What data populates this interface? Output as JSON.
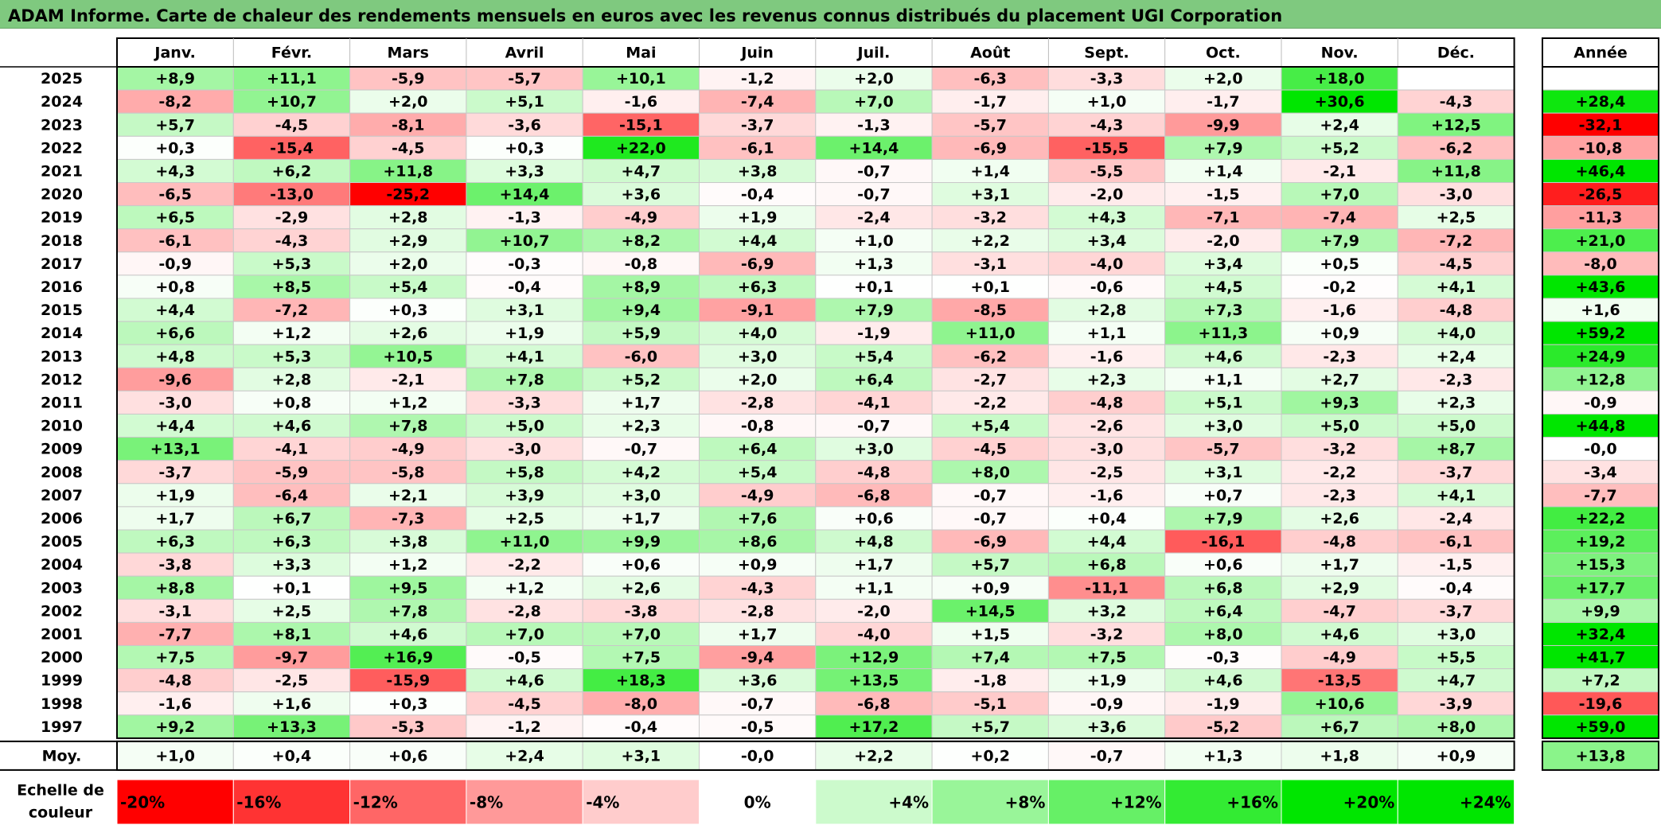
{
  "title": "ADAM Informe. Carte de chaleur des rendements mensuels en euros avec les revenus connus distribués du placement UGI Corporation",
  "chart_data": {
    "type": "heatmap",
    "title": "ADAM Informe. Carte de chaleur des rendements mensuels en euros avec les revenus connus distribués du placement UGI Corporation",
    "months": [
      "Janv.",
      "Févr.",
      "Mars",
      "Avril",
      "Mai",
      "Juin",
      "Juil.",
      "Août",
      "Sept.",
      "Oct.",
      "Nov.",
      "Déc."
    ],
    "year_header": "Année",
    "rows": [
      {
        "year": "2025",
        "values": [
          "+8,9",
          "+11,1",
          "-5,9",
          "-5,7",
          "+10,1",
          "-1,2",
          "+2,0",
          "-6,3",
          "-3,3",
          "+2,0",
          "+18,0",
          ""
        ],
        "annual": ""
      },
      {
        "year": "2024",
        "values": [
          "-8,2",
          "+10,7",
          "+2,0",
          "+5,1",
          "-1,6",
          "-7,4",
          "+7,0",
          "-1,7",
          "+1,0",
          "-1,7",
          "+30,6",
          "-4,3"
        ],
        "annual": "+28,4"
      },
      {
        "year": "2023",
        "values": [
          "+5,7",
          "-4,5",
          "-8,1",
          "-3,6",
          "-15,1",
          "-3,7",
          "-1,3",
          "-5,7",
          "-4,3",
          "-9,9",
          "+2,4",
          "+12,5"
        ],
        "annual": "-32,1"
      },
      {
        "year": "2022",
        "values": [
          "+0,3",
          "-15,4",
          "-4,5",
          "+0,3",
          "+22,0",
          "-6,1",
          "+14,4",
          "-6,9",
          "-15,5",
          "+7,9",
          "+5,2",
          "-6,2"
        ],
        "annual": "-10,8"
      },
      {
        "year": "2021",
        "values": [
          "+4,3",
          "+6,2",
          "+11,8",
          "+3,3",
          "+4,7",
          "+3,8",
          "-0,7",
          "+1,4",
          "-5,5",
          "+1,4",
          "-2,1",
          "+11,8"
        ],
        "annual": "+46,4"
      },
      {
        "year": "2020",
        "values": [
          "-6,5",
          "-13,0",
          "-25,2",
          "+14,4",
          "+3,6",
          "-0,4",
          "-0,7",
          "+3,1",
          "-2,0",
          "-1,5",
          "+7,0",
          "-3,0"
        ],
        "annual": "-26,5"
      },
      {
        "year": "2019",
        "values": [
          "+6,5",
          "-2,9",
          "+2,8",
          "-1,3",
          "-4,9",
          "+1,9",
          "-2,4",
          "-3,2",
          "+4,3",
          "-7,1",
          "-7,4",
          "+2,5"
        ],
        "annual": "-11,3"
      },
      {
        "year": "2018",
        "values": [
          "-6,1",
          "-4,3",
          "+2,9",
          "+10,7",
          "+8,2",
          "+4,4",
          "+1,0",
          "+2,2",
          "+3,4",
          "-2,0",
          "+7,9",
          "-7,2"
        ],
        "annual": "+21,0"
      },
      {
        "year": "2017",
        "values": [
          "-0,9",
          "+5,3",
          "+2,0",
          "-0,3",
          "-0,8",
          "-6,9",
          "+1,3",
          "-3,1",
          "-4,0",
          "+3,4",
          "+0,5",
          "-4,5"
        ],
        "annual": "-8,0"
      },
      {
        "year": "2016",
        "values": [
          "+0,8",
          "+8,5",
          "+5,4",
          "-0,4",
          "+8,9",
          "+6,3",
          "+0,1",
          "+0,1",
          "-0,6",
          "+4,5",
          "-0,2",
          "+4,1"
        ],
        "annual": "+43,6"
      },
      {
        "year": "2015",
        "values": [
          "+4,4",
          "-7,2",
          "+0,3",
          "+3,1",
          "+9,4",
          "-9,1",
          "+7,9",
          "-8,5",
          "+2,8",
          "+7,3",
          "-1,6",
          "-4,8"
        ],
        "annual": "+1,6"
      },
      {
        "year": "2014",
        "values": [
          "+6,6",
          "+1,2",
          "+2,6",
          "+1,9",
          "+5,9",
          "+4,0",
          "-1,9",
          "+11,0",
          "+1,1",
          "+11,3",
          "+0,9",
          "+4,0"
        ],
        "annual": "+59,2"
      },
      {
        "year": "2013",
        "values": [
          "+4,8",
          "+5,3",
          "+10,5",
          "+4,1",
          "-6,0",
          "+3,0",
          "+5,4",
          "-6,2",
          "-1,6",
          "+4,6",
          "-2,3",
          "+2,4"
        ],
        "annual": "+24,9"
      },
      {
        "year": "2012",
        "values": [
          "-9,6",
          "+2,8",
          "-2,1",
          "+7,8",
          "+5,2",
          "+2,0",
          "+6,4",
          "-2,7",
          "+2,3",
          "+1,1",
          "+2,7",
          "-2,3"
        ],
        "annual": "+12,8"
      },
      {
        "year": "2011",
        "values": [
          "-3,0",
          "+0,8",
          "+1,2",
          "-3,3",
          "+1,7",
          "-2,8",
          "-4,1",
          "-2,2",
          "-4,8",
          "+5,1",
          "+9,3",
          "+2,3"
        ],
        "annual": "-0,9"
      },
      {
        "year": "2010",
        "values": [
          "+4,4",
          "+4,6",
          "+7,8",
          "+5,0",
          "+2,3",
          "-0,8",
          "-0,7",
          "+5,4",
          "-2,6",
          "+3,0",
          "+5,0",
          "+5,0"
        ],
        "annual": "+44,8"
      },
      {
        "year": "2009",
        "values": [
          "+13,1",
          "-4,1",
          "-4,9",
          "-3,0",
          "-0,7",
          "+6,4",
          "+3,0",
          "-4,5",
          "-3,0",
          "-5,7",
          "-3,2",
          "+8,7"
        ],
        "annual": "-0,0"
      },
      {
        "year": "2008",
        "values": [
          "-3,7",
          "-5,9",
          "-5,8",
          "+5,8",
          "+4,2",
          "+5,4",
          "-4,8",
          "+8,0",
          "-2,5",
          "+3,1",
          "-2,2",
          "-3,7"
        ],
        "annual": "-3,4"
      },
      {
        "year": "2007",
        "values": [
          "+1,9",
          "-6,4",
          "+2,1",
          "+3,9",
          "+3,0",
          "-4,9",
          "-6,8",
          "-0,7",
          "-1,6",
          "+0,7",
          "-2,3",
          "+4,1"
        ],
        "annual": "-7,7"
      },
      {
        "year": "2006",
        "values": [
          "+1,7",
          "+6,7",
          "-7,3",
          "+2,5",
          "+1,7",
          "+7,6",
          "+0,6",
          "-0,7",
          "+0,4",
          "+7,9",
          "+2,6",
          "-2,4"
        ],
        "annual": "+22,2"
      },
      {
        "year": "2005",
        "values": [
          "+6,3",
          "+6,3",
          "+3,8",
          "+11,0",
          "+9,9",
          "+8,6",
          "+4,8",
          "-6,9",
          "+4,4",
          "-16,1",
          "-4,8",
          "-6,1"
        ],
        "annual": "+19,2"
      },
      {
        "year": "2004",
        "values": [
          "-3,8",
          "+3,3",
          "+1,2",
          "-2,2",
          "+0,6",
          "+0,9",
          "+1,7",
          "+5,7",
          "+6,8",
          "+0,6",
          "+1,7",
          "-1,5"
        ],
        "annual": "+15,3"
      },
      {
        "year": "2003",
        "values": [
          "+8,8",
          "+0,1",
          "+9,5",
          "+1,2",
          "+2,6",
          "-4,3",
          "+1,1",
          "+0,9",
          "-11,1",
          "+6,8",
          "+2,9",
          "-0,4"
        ],
        "annual": "+17,7"
      },
      {
        "year": "2002",
        "values": [
          "-3,1",
          "+2,5",
          "+7,8",
          "-2,8",
          "-3,8",
          "-2,8",
          "-2,0",
          "+14,5",
          "+3,2",
          "+6,4",
          "-4,7",
          "-3,7"
        ],
        "annual": "+9,9"
      },
      {
        "year": "2001",
        "values": [
          "-7,7",
          "+8,1",
          "+4,6",
          "+7,0",
          "+7,0",
          "+1,7",
          "-4,0",
          "+1,5",
          "-3,2",
          "+8,0",
          "+4,6",
          "+3,0"
        ],
        "annual": "+32,4"
      },
      {
        "year": "2000",
        "values": [
          "+7,5",
          "-9,7",
          "+16,9",
          "-0,5",
          "+7,5",
          "-9,4",
          "+12,9",
          "+7,4",
          "+7,5",
          "-0,3",
          "-4,9",
          "+5,5"
        ],
        "annual": "+41,7"
      },
      {
        "year": "1999",
        "values": [
          "-4,8",
          "-2,5",
          "-15,9",
          "+4,6",
          "+18,3",
          "+3,6",
          "+13,5",
          "-1,8",
          "+1,9",
          "+4,6",
          "-13,5",
          "+4,7"
        ],
        "annual": "+7,2"
      },
      {
        "year": "1998",
        "values": [
          "-1,6",
          "+1,6",
          "+0,3",
          "-4,5",
          "-8,0",
          "-0,7",
          "-6,8",
          "-5,1",
          "-0,9",
          "-1,9",
          "+10,6",
          "-3,9"
        ],
        "annual": "-19,6"
      },
      {
        "year": "1997",
        "values": [
          "+9,2",
          "+13,3",
          "-5,3",
          "-1,2",
          "-0,4",
          "-0,5",
          "+17,2",
          "+5,7",
          "+3,6",
          "-5,2",
          "+6,7",
          "+8,0"
        ],
        "annual": "+59,0"
      }
    ],
    "average": {
      "label": "Moy.",
      "values": [
        "+1,0",
        "+0,4",
        "+0,6",
        "+2,4",
        "+3,1",
        "-0,0",
        "+2,2",
        "+0,2",
        "-0,7",
        "+1,3",
        "+1,8",
        "+0,9"
      ],
      "annual": "+13,8"
    },
    "color_scale": {
      "label_line1": "Echelle de",
      "label_line2": "couleur",
      "stops": [
        "-20%",
        "-16%",
        "-12%",
        "-8%",
        "-4%",
        "0%",
        "+4%",
        "+8%",
        "+12%",
        "+16%",
        "+20%",
        "+24%"
      ],
      "negative_color": "#ff0000",
      "positive_color": "#00e600",
      "neutral_color": "#ffffff"
    }
  }
}
